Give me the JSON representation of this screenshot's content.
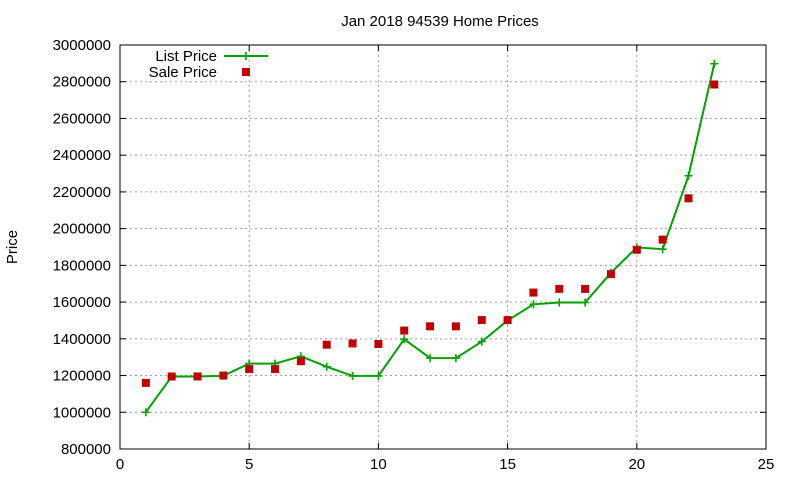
{
  "chart_data": {
    "type": "line",
    "title": "Jan 2018 94539 Home Prices",
    "xlabel": "",
    "ylabel": "Price",
    "xlim": [
      0,
      25
    ],
    "ylim": [
      800000,
      3000000
    ],
    "xticks": [
      0,
      5,
      10,
      15,
      20,
      25
    ],
    "yticks": [
      800000,
      1000000,
      1200000,
      1400000,
      1600000,
      1800000,
      2000000,
      2200000,
      2400000,
      2600000,
      2800000,
      3000000
    ],
    "grid": true,
    "legend_position": "top-left",
    "series": [
      {
        "name": "List Price",
        "style": "line-plus",
        "color": "#00a000",
        "x": [
          1,
          2,
          3,
          4,
          5,
          6,
          7,
          8,
          9,
          10,
          11,
          12,
          13,
          14,
          15,
          16,
          17,
          18,
          19,
          20,
          21,
          22,
          23
        ],
        "y": [
          1000000,
          1195000,
          1195000,
          1199000,
          1265000,
          1265000,
          1305000,
          1248000,
          1198000,
          1198000,
          1398000,
          1295000,
          1295000,
          1385000,
          1500000,
          1588000,
          1598000,
          1598000,
          1760000,
          1898000,
          1888000,
          2288000,
          2898000
        ]
      },
      {
        "name": "Sale Price",
        "style": "points-square",
        "color": "#c00000",
        "x": [
          1,
          2,
          3,
          4,
          5,
          6,
          7,
          8,
          9,
          10,
          11,
          12,
          13,
          14,
          15,
          16,
          17,
          18,
          19,
          20,
          21,
          22,
          23
        ],
        "y": [
          1160000,
          1195000,
          1195000,
          1200000,
          1235000,
          1235000,
          1278000,
          1368000,
          1375000,
          1372000,
          1445000,
          1468000,
          1468000,
          1502000,
          1502000,
          1652000,
          1672000,
          1672000,
          1752000,
          1885000,
          1940000,
          2165000,
          2785000
        ]
      }
    ]
  }
}
